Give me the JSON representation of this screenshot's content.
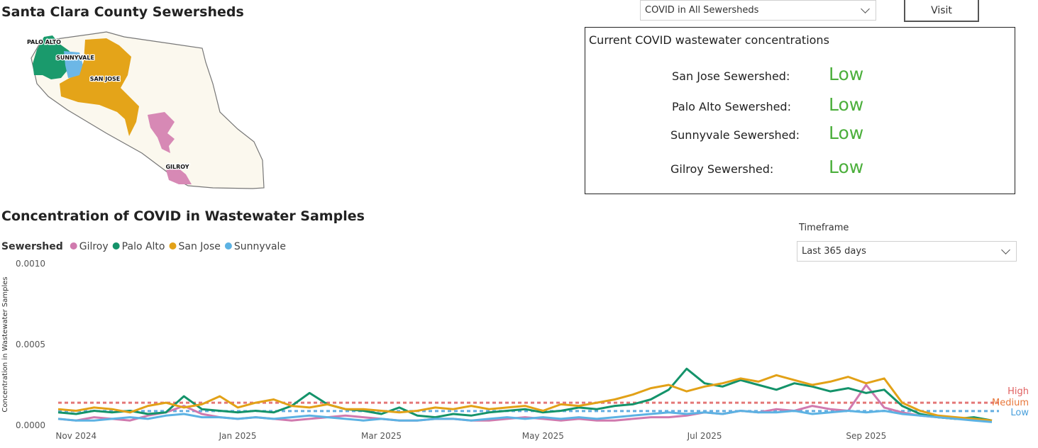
{
  "header": {
    "title": "Santa Clara County Sewersheds"
  },
  "map": {
    "labels": [
      "PALO ALTO",
      "SUNNYVALE",
      "SAN JOSE",
      "GILROY"
    ]
  },
  "controls": {
    "sewershed_select": "COVID in All Sewersheds",
    "visit_button": "Visit",
    "timeframe_label": "Timeframe",
    "timeframe_select": "Last 365 days"
  },
  "status_panel": {
    "title": "Current COVID wastewater concentrations",
    "rows": [
      [
        "San Jose Sewershed:",
        "Low"
      ],
      [
        "Palo Alto Sewershed:",
        "Low"
      ],
      [
        "Sunnyvale Sewershed:",
        "Low"
      ],
      [
        "Gilroy Sewershed:",
        "Low"
      ]
    ]
  },
  "chart_data": {
    "type": "line",
    "title": "Concentration of COVID in Wastewater Samples",
    "legend_title": "Sewershed",
    "y_label": "Concentration in Wastewater Samples",
    "categories": [
      null,
      "Nov 2024",
      null,
      null,
      null,
      null,
      null,
      null,
      null,
      null,
      "Jan 2025",
      null,
      null,
      null,
      null,
      null,
      null,
      null,
      "Mar 2025",
      null,
      null,
      null,
      null,
      null,
      null,
      null,
      null,
      "May 2025",
      null,
      null,
      null,
      null,
      null,
      null,
      null,
      null,
      "Jul 2025",
      null,
      null,
      null,
      null,
      null,
      null,
      null,
      null,
      "Sep 2025",
      null,
      null,
      null,
      null,
      null,
      null,
      null
    ],
    "series": [
      {
        "name": "Gilroy",
        "color": "#d07aae",
        "values": [
          4e-05,
          3e-05,
          5e-05,
          4e-05,
          3e-05,
          6e-05,
          8e-05,
          0.00012,
          7e-05,
          5e-05,
          4e-05,
          5e-05,
          4e-05,
          3e-05,
          4e-05,
          5e-05,
          6e-05,
          5e-05,
          4e-05,
          3e-05,
          3e-05,
          4e-05,
          4e-05,
          3e-05,
          3e-05,
          4e-05,
          5e-05,
          4e-05,
          3e-05,
          4e-05,
          3e-05,
          3e-05,
          4e-05,
          5e-05,
          5e-05,
          6e-05,
          8e-05,
          7e-05,
          9e-05,
          8e-05,
          0.0001,
          9e-05,
          0.00012,
          0.0001,
          9e-05,
          0.00025,
          0.00011,
          8e-05,
          6e-05,
          5e-05,
          4e-05,
          4e-05,
          3e-05
        ]
      },
      {
        "name": "Palo Alto",
        "color": "#14936a",
        "values": [
          8e-05,
          7e-05,
          9e-05,
          8e-05,
          9e-05,
          7e-05,
          8e-05,
          0.00018,
          0.0001,
          9e-05,
          8e-05,
          9e-05,
          8e-05,
          0.00012,
          0.0002,
          0.00013,
          0.0001,
          9e-05,
          7e-05,
          0.00011,
          6e-05,
          5e-05,
          7e-05,
          6e-05,
          8e-05,
          9e-05,
          0.0001,
          8e-05,
          9e-05,
          0.00011,
          0.0001,
          0.00012,
          0.00013,
          0.00016,
          0.00022,
          0.00035,
          0.00026,
          0.00024,
          0.00028,
          0.00025,
          0.00022,
          0.00026,
          0.00024,
          0.00021,
          0.00023,
          0.0002,
          0.00022,
          0.00012,
          7e-05,
          5e-05,
          4e-05,
          5e-05,
          3e-05
        ]
      },
      {
        "name": "San Jose",
        "color": "#e2a117",
        "values": [
          0.0001,
          9e-05,
          0.00011,
          0.0001,
          8e-05,
          0.00012,
          0.00014,
          0.00011,
          0.00013,
          0.00018,
          0.00011,
          0.00014,
          0.00016,
          0.00012,
          0.00011,
          0.00013,
          0.0001,
          0.0001,
          9e-05,
          8e-05,
          9e-05,
          0.00011,
          0.0001,
          0.00012,
          0.0001,
          0.00011,
          0.00012,
          9e-05,
          0.00013,
          0.00012,
          0.00014,
          0.00016,
          0.00019,
          0.00023,
          0.00025,
          0.00021,
          0.00024,
          0.00026,
          0.00029,
          0.00027,
          0.00031,
          0.00028,
          0.00025,
          0.00027,
          0.0003,
          0.00026,
          0.00029,
          0.00014,
          9e-05,
          6e-05,
          5e-05,
          4e-05,
          3e-05
        ]
      },
      {
        "name": "Sunnyvale",
        "color": "#5cb2e3",
        "values": [
          4e-05,
          3e-05,
          3e-05,
          4e-05,
          5e-05,
          4e-05,
          6e-05,
          7e-05,
          5e-05,
          5e-05,
          4e-05,
          5e-05,
          4e-05,
          5e-05,
          6e-05,
          5e-05,
          4e-05,
          3e-05,
          4e-05,
          3e-05,
          3e-05,
          4e-05,
          4e-05,
          3e-05,
          4e-05,
          5e-05,
          4e-05,
          5e-05,
          4e-05,
          5e-05,
          4e-05,
          5e-05,
          6e-05,
          7e-05,
          8e-05,
          7e-05,
          8e-05,
          7e-05,
          9e-05,
          8e-05,
          8e-05,
          9e-05,
          7e-05,
          8e-05,
          9e-05,
          8e-05,
          9e-05,
          7e-05,
          6e-05,
          5e-05,
          4e-05,
          3e-05,
          2e-05
        ]
      }
    ],
    "ylim": [
      0,
      0.001
    ],
    "yticks": [
      {
        "value": 0,
        "label": "0.0000"
      },
      {
        "value": 0.0005,
        "label": "0.0005"
      },
      {
        "value": 0.001,
        "label": "0.0010"
      }
    ],
    "thresholds": [
      {
        "label": "High",
        "color": "#e06060",
        "value": 0.00014
      },
      {
        "label": "Medium",
        "color": "#e8773a"
      },
      {
        "label": "Low",
        "color": "#4aa0dc",
        "value": 8.8e-05
      }
    ],
    "status_color": "#4caf3c"
  }
}
